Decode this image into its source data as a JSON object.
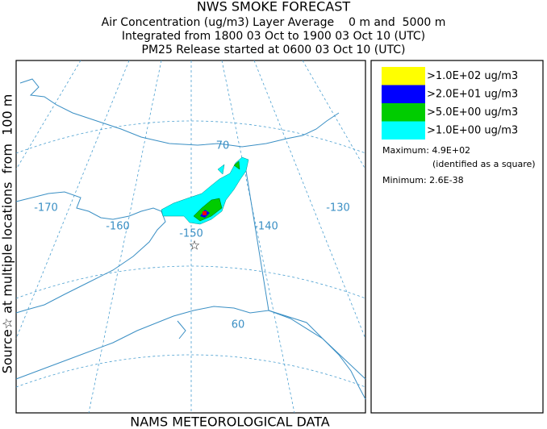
{
  "header": {
    "title": "NWS SMOKE FORECAST",
    "lines": [
      "Air Concentration (ug/m3) Layer Average    0 m and  5000 m",
      "Integrated from 1800 03 Oct to 1900 03 Oct 10 (UTC)",
      "PM25 Release started at 0600 03 Oct 10 (UTC)"
    ]
  },
  "side_label": "Source☆ at multiple locations  from  100 m",
  "footer": "NAMS METEOROLOGICAL DATA",
  "map": {
    "labels": [
      "70",
      "-170",
      "-160",
      "-150",
      "-140",
      "-130",
      "60"
    ],
    "source_marker": "☆"
  },
  "legend": {
    "items": [
      {
        "label": ">1.0E+02 ug/m3",
        "color": "#ffff00"
      },
      {
        "label": ">2.0E+01 ug/m3",
        "color": "#0000ff"
      },
      {
        "label": ">5.0E+00 ug/m3",
        "color": "#00cc00"
      },
      {
        "label": ">1.0E+00 ug/m3",
        "color": "#00ffff"
      }
    ],
    "maximum": "Maximum: 4.9E+02",
    "maximum_note": "(identified as a square)",
    "minimum": "Minimum: 2.6E-38"
  }
}
